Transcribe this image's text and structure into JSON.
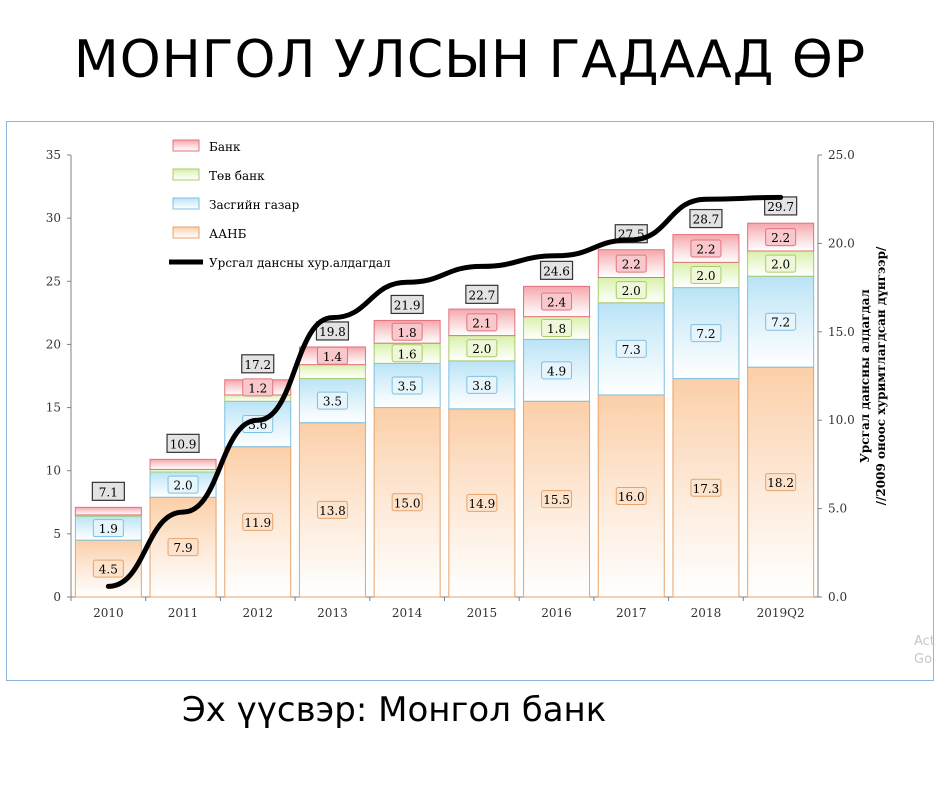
{
  "slide": {
    "title": "МОНГОЛ УЛСЫН ГАДААД ӨР",
    "source_label": "Эх үүсвэр:",
    "source_value": "Монгол банк",
    "watermark_line1": "Act",
    "watermark_line2": "Go"
  },
  "colors": {
    "bank": "#f4a6ac",
    "central_bank": "#d8f0a8",
    "government": "#b9e3f6",
    "aanb": "#fbcfa8",
    "line": "#000000",
    "axis": "#7f7f7f"
  },
  "chart_data": {
    "type": "bar",
    "stacked": true,
    "categories": [
      "2010",
      "2011",
      "2012",
      "2013",
      "2014",
      "2015",
      "2016",
      "2017",
      "2018",
      "2019Q2"
    ],
    "ylim": [
      0,
      35
    ],
    "yticks": [
      "0",
      "5",
      "10",
      "15",
      "20",
      "25",
      "30",
      "35"
    ],
    "y2lim": [
      0,
      25
    ],
    "y2ticks": [
      "0.0",
      "5.0",
      "10.0",
      "15.0",
      "20.0",
      "25.0"
    ],
    "y2label_line1": "Урсгал дансны алдагдал",
    "y2label_line2": "//2009 оноос хуримтлагдсан дүнгээр/",
    "series": [
      {
        "name": "ААНБ",
        "color_key": "aanb",
        "values": [
          4.5,
          7.9,
          11.9,
          13.8,
          15.0,
          14.9,
          15.5,
          16.0,
          17.3,
          18.2
        ],
        "labels": [
          "4.5",
          "7.9",
          "11.9",
          "13.8",
          "15.0",
          "14.9",
          "15.5",
          "16.0",
          "17.3",
          "18.2"
        ]
      },
      {
        "name": "Засгийн газар",
        "color_key": "government",
        "values": [
          1.9,
          2.0,
          3.6,
          3.5,
          3.5,
          3.8,
          4.9,
          7.3,
          7.2,
          7.2
        ],
        "labels": [
          "1.9",
          "2.0",
          "3.6",
          "3.5",
          "3.5",
          "3.8",
          "4.9",
          "7.3",
          "7.2",
          "7.2"
        ]
      },
      {
        "name": "Төв банк",
        "color_key": "central_bank",
        "values": [
          0.1,
          0.2,
          0.5,
          1.1,
          1.6,
          2.0,
          1.8,
          2.0,
          2.0,
          2.0
        ],
        "labels": [
          "",
          "",
          "",
          "",
          "1.6",
          "2.0",
          "1.8",
          "2.0",
          "2.0",
          "2.0"
        ]
      },
      {
        "name": "Банк",
        "color_key": "bank",
        "values": [
          0.6,
          0.8,
          1.2,
          1.4,
          1.8,
          2.1,
          2.4,
          2.2,
          2.2,
          2.2
        ],
        "labels": [
          "",
          "",
          "1.2",
          "1.4",
          "1.8",
          "2.1",
          "2.4",
          "2.2",
          "2.2",
          "2.2"
        ]
      }
    ],
    "totals": [
      "7.1",
      "10.9",
      "17.2",
      "19.8",
      "21.9",
      "22.7",
      "24.6",
      "27.5",
      "28.7",
      "29.7"
    ],
    "total_values": [
      7.1,
      10.9,
      17.2,
      19.8,
      21.9,
      22.7,
      24.6,
      27.5,
      28.7,
      29.7
    ],
    "line_series": {
      "name": "Урсгал дансны хур.алдагдал",
      "axis": "secondary",
      "values": [
        0.6,
        4.8,
        10.0,
        15.8,
        17.8,
        18.7,
        19.3,
        20.2,
        22.5,
        22.6
      ]
    },
    "legend": [
      "Банк",
      "Төв банк",
      "Засгийн газар",
      "ААНБ",
      "Урсгал дансны хур.алдагдал"
    ],
    "legend_position": "top-left"
  }
}
